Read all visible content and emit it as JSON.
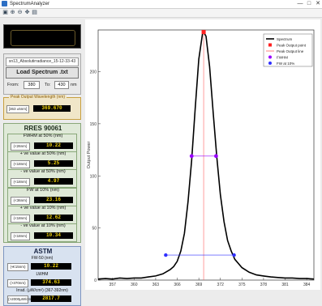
{
  "window": {
    "title": "SpectrumAnalyzer",
    "minimize_glyph": "—",
    "maximize_glyph": "□",
    "close_glyph": "✕"
  },
  "toolbar": {
    "icons": [
      "open-icon",
      "zoom-in-icon",
      "zoom-out-icon",
      "pan-icon",
      "save-icon"
    ]
  },
  "file": {
    "name": "sn13_Absolutirradiance_15-12-33-43",
    "load_label": "Load Spectrum .txt",
    "from_label": "From:",
    "from_value": "380",
    "to_label": "To:",
    "to_value": "430",
    "unit": "nm"
  },
  "peak": {
    "title": "Peak Output Wavelength (nm)",
    "unit": "[363 ±5nm]",
    "value": "369.670"
  },
  "rres": {
    "title": "RRES 90061",
    "fields": [
      {
        "title": "FWHM at 50%  (nm)",
        "unit": "(<26nm)",
        "value": "10.22"
      },
      {
        "title": "+ ve value at 50%  (nm)",
        "unit": "(<18nm)",
        "value": "5.25"
      },
      {
        "title": "- ve value at 50%  (nm)",
        "unit": "(<18nm)",
        "value": "4.97"
      },
      {
        "title": "FW at 10%  (nm)",
        "unit": "(<36nm)",
        "value": "23.16"
      },
      {
        "title": "+ ve value at 10%  (nm)",
        "unit": "(<18nm)",
        "value": "12.62"
      },
      {
        "title": "- ve value at 10%  (nm)",
        "unit": "(<18nm)",
        "value": "10.34"
      }
    ]
  },
  "astm": {
    "title": "ASTM",
    "fields": [
      {
        "title": "FW-50 (nm)",
        "unit": "(≪15nm)",
        "value": "10.22"
      },
      {
        "title": "LWHM",
        "unit": "(>370nm)",
        "value": "374.63"
      },
      {
        "title": "Irrad. (μW/cm²) (367-392nm)",
        "unit": "(>2000μW/cm²)",
        "value": "2817.7"
      }
    ]
  },
  "chart_data": {
    "type": "line",
    "ylabel": "Output Power",
    "xlabel": "",
    "xlim": [
      355,
      385
    ],
    "ylim": [
      0,
      240
    ],
    "x_ticks": [
      357,
      360,
      363,
      366,
      369,
      372,
      375,
      378,
      381,
      384
    ],
    "y_ticks": [
      0,
      50,
      100,
      150,
      200
    ],
    "legend": {
      "placement": "top-right",
      "entries": [
        {
          "name": "Spectrum",
          "color": "#000000",
          "kind": "line"
        },
        {
          "name": "Peak Output point",
          "color": "#ff2020",
          "kind": "square"
        },
        {
          "name": "Peak Output line",
          "color": "#ff6060",
          "kind": "line"
        },
        {
          "name": "FWHM",
          "color": "#9900ff",
          "kind": "dot"
        },
        {
          "name": "FW at 10%",
          "color": "#3030ff",
          "kind": "dot"
        }
      ]
    },
    "series": [
      {
        "name": "Spectrum",
        "color": "#000000",
        "x": [
          355,
          356,
          357,
          358,
          359,
          360,
          361,
          362,
          363,
          364,
          365,
          365.5,
          366,
          366.5,
          367,
          367.5,
          368,
          368.5,
          369,
          369.5,
          369.67,
          370,
          370.5,
          371,
          371.5,
          372,
          372.5,
          373,
          373.5,
          374,
          375,
          376,
          377,
          378,
          379,
          380,
          381,
          382,
          383,
          384,
          385
        ],
        "y": [
          1,
          1.5,
          1,
          2,
          1.5,
          2,
          2,
          3,
          4,
          6,
          10,
          13,
          18,
          28,
          45,
          75,
          115,
          165,
          212,
          236,
          238,
          234,
          205,
          160,
          118,
          82,
          56,
          38,
          28,
          20,
          12,
          7.5,
          5,
          4,
          3,
          2.5,
          2,
          2,
          1.5,
          1.5,
          1
        ]
      }
    ],
    "peak_point": {
      "x": 369.67,
      "y": 238
    },
    "fwhm_points": [
      {
        "x": 368.0,
        "y": 119
      },
      {
        "x": 371.4,
        "y": 119
      }
    ],
    "fw10_points": [
      {
        "x": 364.4,
        "y": 24
      },
      {
        "x": 373.9,
        "y": 24
      }
    ]
  }
}
